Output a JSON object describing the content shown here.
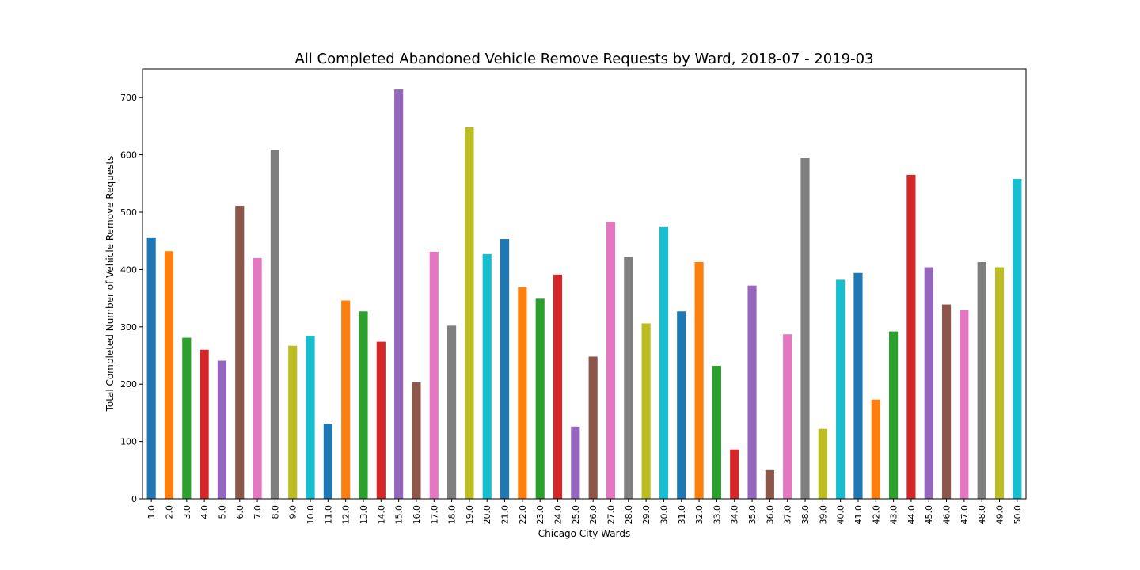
{
  "chart_data": {
    "type": "bar",
    "title": "All Completed Abandoned Vehicle Remove Requests by Ward, 2018-07 - 2019-03",
    "xlabel": "Chicago City Wards",
    "ylabel": "Total Completed Number of Vehicle Remove Requests",
    "ylim": [
      0,
      750
    ],
    "yticks": [
      "0",
      "100",
      "200",
      "300",
      "400",
      "500",
      "600",
      "700"
    ],
    "categories": [
      "1.0",
      "2.0",
      "3.0",
      "4.0",
      "5.0",
      "6.0",
      "7.0",
      "8.0",
      "9.0",
      "10.0",
      "11.0",
      "12.0",
      "13.0",
      "14.0",
      "15.0",
      "16.0",
      "17.0",
      "18.0",
      "19.0",
      "20.0",
      "21.0",
      "22.0",
      "23.0",
      "24.0",
      "25.0",
      "26.0",
      "27.0",
      "28.0",
      "29.0",
      "30.0",
      "31.0",
      "32.0",
      "33.0",
      "34.0",
      "35.0",
      "36.0",
      "37.0",
      "38.0",
      "39.0",
      "40.0",
      "41.0",
      "42.0",
      "43.0",
      "44.0",
      "45.0",
      "46.0",
      "47.0",
      "48.0",
      "49.0",
      "50.0"
    ],
    "values": [
      456,
      432,
      281,
      260,
      241,
      511,
      420,
      609,
      267,
      284,
      131,
      346,
      327,
      274,
      714,
      203,
      431,
      302,
      648,
      427,
      453,
      369,
      349,
      391,
      126,
      248,
      483,
      422,
      306,
      474,
      327,
      413,
      232,
      86,
      372,
      50,
      287,
      595,
      122,
      382,
      394,
      173,
      292,
      565,
      404,
      339,
      329,
      413,
      404,
      558
    ],
    "colors": [
      "#1f77b4",
      "#ff7f0e",
      "#2ca02c",
      "#d62728",
      "#9467bd",
      "#8c564b",
      "#e377c2",
      "#7f7f7f",
      "#bcbd22",
      "#17becf"
    ],
    "grid": false,
    "legend": "none"
  }
}
